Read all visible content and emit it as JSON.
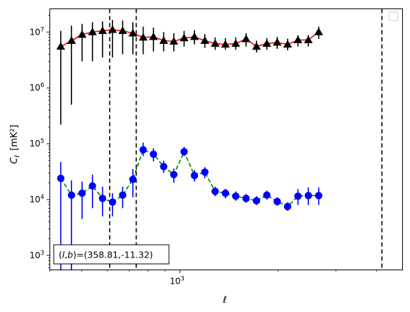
{
  "chart_data": {
    "type": "scatter",
    "xlabel": "ℓ",
    "ylabel_main": "C",
    "ylabel_sub": "ℓ",
    "ylabel_units": "[mK²]",
    "xscale": "log",
    "yscale": "log",
    "xlim": [
      400,
      4800
    ],
    "ylim": [
      550,
      26000000
    ],
    "x_major_ticks": [
      {
        "value": 1000,
        "base": "10",
        "exp": "3"
      }
    ],
    "y_major_ticks": [
      {
        "value": 1000,
        "base": "10",
        "exp": "3"
      },
      {
        "value": 10000,
        "base": "10",
        "exp": "4"
      },
      {
        "value": 100000,
        "base": "10",
        "exp": "5"
      },
      {
        "value": 1000000,
        "base": "10",
        "exp": "6"
      },
      {
        "value": 10000000,
        "base": "10",
        "exp": "7"
      }
    ],
    "vlines": [
      610,
      735,
      4150
    ],
    "annotation_pre": "(",
    "annotation_l": "l",
    "annotation_sep": ",",
    "annotation_b": "b",
    "annotation_post": ")=(358.81,-11.32)",
    "legend_placement": "top-right",
    "colors": {
      "upper_line": "#ff0000",
      "upper_marker": "#000000",
      "lower_line": "#008000",
      "lower_marker": "#0000ff"
    },
    "x": [
      430,
      470,
      510,
      550,
      585,
      620,
      660,
      700,
      740,
      790,
      840,
      890,
      945,
      1000,
      1060,
      1130,
      1200,
      1280,
      1360,
      1450,
      1550,
      1660,
      1780,
      1910,
      2050,
      2200,
      2360,
      2530,
      2720,
      2920,
      3140,
      3380,
      3640,
      3920,
      4220,
      4540,
      4700
    ],
    "upper": {
      "y": [
        5500000,
        7000000,
        9000000,
        10000000,
        10500000,
        11000000,
        10500000,
        9500000,
        8000000,
        8200000,
        7000000,
        6800000,
        7800000,
        8200000,
        7000000,
        6200000,
        6000000,
        6200000,
        7500000,
        5500000,
        6200000,
        6500000,
        6000000,
        7200000,
        7200000,
        10000000
      ],
      "x_index": [
        0,
        1,
        2,
        3,
        4,
        5,
        6,
        7,
        8,
        9,
        10,
        11,
        12,
        13,
        14,
        15,
        16,
        17,
        18,
        19,
        20,
        21,
        22,
        23,
        24,
        25
      ],
      "err_lo": [
        220000,
        500000,
        3000000,
        3000000,
        3500000,
        3500000,
        4000000,
        4000000,
        4000000,
        4500000,
        4500000,
        4500000,
        5500000,
        6000000,
        5200000,
        4800000,
        4800000,
        4800000,
        5500000,
        4300000,
        4800000,
        5000000,
        4700000,
        5500000,
        5500000,
        7500000
      ],
      "err_hi": [
        10500000,
        13000000,
        14000000,
        15000000,
        15500000,
        16500000,
        16000000,
        15000000,
        12500000,
        12000000,
        10000000,
        9500000,
        10500000,
        10800000,
        9200000,
        8000000,
        7800000,
        8000000,
        9500000,
        7000000,
        7800000,
        8200000,
        7600000,
        8800000,
        8800000,
        12500000
      ],
      "x_vals": [
        432,
        466,
        502,
        540,
        580,
        622,
        668,
        718,
        772,
        830,
        892,
        958,
        1030,
        1108,
        1192,
        1282,
        1378,
        1482,
        1594,
        1715,
        1845,
        1985,
        2135,
        2297,
        2471,
        2658
      ]
    },
    "upper_series": {
      "x": [
        432,
        466,
        502,
        540,
        580,
        622,
        668,
        718,
        772,
        830,
        892,
        958,
        1030,
        1108,
        1192,
        1282,
        1378,
        1482,
        1594,
        1715,
        1845,
        1985,
        2135,
        2297,
        2471,
        2658
      ],
      "y": [
        5500000,
        7000000,
        9000000,
        10000000,
        10500000,
        11000000,
        10500000,
        9500000,
        8000000,
        8200000,
        7000000,
        6800000,
        7800000,
        8200000,
        7000000,
        6200000,
        6000000,
        6200000,
        7500000,
        5500000,
        6200000,
        6500000,
        6000000,
        7200000,
        7200000,
        10000000
      ],
      "err_lo": [
        220000,
        500000,
        3000000,
        3000000,
        3500000,
        3500000,
        4000000,
        4000000,
        4000000,
        4500000,
        4500000,
        4500000,
        5500000,
        6000000,
        5200000,
        4800000,
        4800000,
        4800000,
        5500000,
        4300000,
        4800000,
        5000000,
        4700000,
        5500000,
        5500000,
        7500000
      ],
      "err_hi": [
        10500000,
        13000000,
        14000000,
        15000000,
        15500000,
        16500000,
        16000000,
        15000000,
        12500000,
        12000000,
        10000000,
        9500000,
        10500000,
        10800000,
        9200000,
        8000000,
        7800000,
        8000000,
        9500000,
        7000000,
        7800000,
        8200000,
        7600000,
        8800000,
        8800000,
        12500000
      ]
    },
    "lower_series": {
      "x": [
        432,
        466,
        502,
        540,
        580,
        622,
        668,
        718,
        772,
        830,
        892,
        958,
        1030,
        1108,
        1192,
        1282,
        1378,
        1482,
        1594,
        1715,
        1845,
        1985,
        2135,
        2297,
        2471,
        2658
      ],
      "y": [
        24000,
        12000,
        13000,
        17500,
        10500,
        9000,
        12000,
        23000,
        78000,
        65000,
        39000,
        28000,
        72000,
        27000,
        31000,
        14000,
        13000,
        11500,
        10500,
        9500,
        12000,
        9200,
        7500,
        11500,
        11800,
        11800
      ],
      "err_lo": [
        550,
        550,
        4500,
        7000,
        5000,
        5000,
        7000,
        11000,
        60000,
        48000,
        30000,
        20000,
        60000,
        21000,
        24000,
        11500,
        10500,
        9500,
        8800,
        8000,
        10000,
        7800,
        6300,
        8000,
        8000,
        8000
      ],
      "err_hi": [
        47000,
        22000,
        21000,
        28000,
        17000,
        13000,
        17000,
        35000,
        105000,
        83000,
        50000,
        36000,
        88000,
        34000,
        38000,
        17000,
        15500,
        14000,
        12500,
        11500,
        14500,
        11000,
        9000,
        15500,
        16500,
        16500
      ]
    }
  }
}
